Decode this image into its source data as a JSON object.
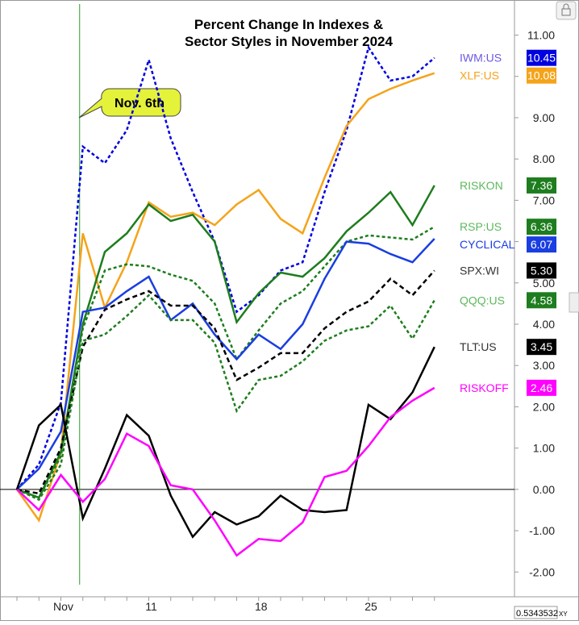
{
  "chart_data": {
    "type": "line",
    "title": [
      "Percent Change In Indexes &",
      "Sector Styles in November 2024"
    ],
    "annotation": "Nov. 6th",
    "corner_readout": "0.5343532",
    "corner_readout_unit": "XY",
    "categories": [
      null,
      null,
      "Nov",
      null,
      null,
      null,
      "11",
      null,
      null,
      null,
      null,
      "18",
      null,
      null,
      null,
      null,
      "25",
      null,
      null,
      null
    ],
    "ylim": [
      -2.6,
      11.85
    ],
    "yticks": [
      {
        "value": -2,
        "label": "-2.00"
      },
      {
        "value": -1,
        "label": "-1.00"
      },
      {
        "value": 0,
        "label": "0.00"
      },
      {
        "value": 1,
        "label": "1.00"
      },
      {
        "value": 2,
        "label": "2.00"
      },
      {
        "value": 3,
        "label": "3.00"
      },
      {
        "value": 4,
        "label": "4.00"
      },
      {
        "value": 5,
        "label": "5.00"
      },
      {
        "value": 6,
        "label": "6.00"
      },
      {
        "value": 7,
        "label": "7.00"
      },
      {
        "value": 8,
        "label": "8.00"
      },
      {
        "value": 9,
        "label": "9.00"
      },
      {
        "value": 10,
        "label": "10.00"
      },
      {
        "value": 11,
        "label": "11.00"
      }
    ],
    "series": [
      {
        "name": "IWM:US",
        "color": "#0000e0",
        "label_color": "#6a5ae0",
        "dash": "dotted",
        "values": [
          0,
          0.6,
          2.1,
          8.3,
          7.9,
          8.7,
          10.4,
          8.5,
          7.2,
          6.0,
          4.3,
          4.7,
          5.3,
          5.5,
          7.2,
          8.7,
          10.7,
          9.9,
          10.0,
          10.45
        ],
        "value_labels": [
          null,
          null,
          null,
          null,
          null,
          null,
          null,
          null,
          null,
          null,
          null,
          null,
          null,
          null,
          null,
          null,
          null,
          null,
          null,
          "10.45"
        ]
      },
      {
        "name": "XLF:US",
        "color": "#f5a31a",
        "label_color": "#f5a31a",
        "dash": "solid",
        "values": [
          0,
          -0.75,
          0.9,
          6.2,
          4.4,
          5.5,
          6.95,
          6.6,
          6.7,
          6.4,
          6.9,
          7.25,
          6.55,
          6.2,
          7.55,
          8.8,
          9.45,
          9.7,
          9.9,
          10.08
        ],
        "value_labels": [
          null,
          null,
          null,
          null,
          null,
          null,
          null,
          null,
          null,
          null,
          null,
          null,
          null,
          null,
          null,
          null,
          null,
          null,
          null,
          "10.08"
        ]
      },
      {
        "name": "RISKON",
        "color": "#1e7d1e",
        "label_color": "#5cb85c",
        "dash": "solid",
        "values": [
          0,
          -0.2,
          0.9,
          4.0,
          5.75,
          6.2,
          6.9,
          6.5,
          6.65,
          6.0,
          4.05,
          4.75,
          5.25,
          5.15,
          5.6,
          6.25,
          6.7,
          7.2,
          6.4,
          7.36
        ],
        "value_labels": [
          null,
          null,
          null,
          null,
          null,
          null,
          null,
          null,
          null,
          null,
          null,
          null,
          null,
          null,
          null,
          null,
          null,
          null,
          null,
          "7.36"
        ]
      },
      {
        "name": "RSP:US",
        "color": "#1e7d1e",
        "label_color": "#5cb85c",
        "dash": "dotted",
        "values": [
          0,
          -0.2,
          0.8,
          3.9,
          5.3,
          5.45,
          5.4,
          5.2,
          5.05,
          4.5,
          3.15,
          3.85,
          4.5,
          4.8,
          5.4,
          6.0,
          6.15,
          6.1,
          6.05,
          6.36
        ],
        "value_labels": [
          null,
          null,
          null,
          null,
          null,
          null,
          null,
          null,
          null,
          null,
          null,
          null,
          null,
          null,
          null,
          null,
          null,
          null,
          null,
          "6.36"
        ]
      },
      {
        "name": "CYCLICAL",
        "color": "#1a3ee0",
        "label_color": "#1a3ee0",
        "dash": "solid",
        "values": [
          0,
          0.5,
          1.4,
          4.3,
          4.4,
          4.8,
          5.15,
          4.1,
          4.5,
          3.75,
          3.15,
          3.75,
          3.4,
          4.0,
          5.1,
          6.0,
          5.95,
          5.7,
          5.5,
          6.07
        ],
        "value_labels": [
          null,
          null,
          null,
          null,
          null,
          null,
          null,
          null,
          null,
          null,
          null,
          null,
          null,
          null,
          null,
          null,
          null,
          null,
          null,
          "6.07"
        ]
      },
      {
        "name": "SPX:WI",
        "color": "#000000",
        "label_color": "#333333",
        "dash": "dashed",
        "values": [
          0,
          -0.1,
          1.0,
          3.45,
          4.35,
          4.6,
          4.8,
          4.45,
          4.45,
          3.9,
          2.65,
          2.95,
          3.3,
          3.3,
          3.9,
          4.3,
          4.55,
          5.1,
          4.7,
          5.3
        ],
        "value_labels": [
          null,
          null,
          null,
          null,
          null,
          null,
          null,
          null,
          null,
          null,
          null,
          null,
          null,
          null,
          null,
          null,
          null,
          null,
          null,
          "5.30"
        ]
      },
      {
        "name": "QQQ:US",
        "color": "#1e7d1e",
        "label_color": "#5cb85c",
        "dash": "dotted",
        "values": [
          0,
          -0.25,
          0.6,
          3.6,
          3.75,
          4.2,
          4.7,
          4.1,
          4.1,
          3.55,
          1.9,
          2.65,
          2.75,
          3.1,
          3.6,
          3.85,
          3.95,
          4.45,
          3.65,
          4.58
        ],
        "value_labels": [
          null,
          null,
          null,
          null,
          null,
          null,
          null,
          null,
          null,
          null,
          null,
          null,
          null,
          null,
          null,
          null,
          null,
          null,
          null,
          "4.58"
        ]
      },
      {
        "name": "TLT:US",
        "color": "#000000",
        "label_color": "#333333",
        "dash": "solid",
        "values": [
          0,
          1.55,
          2.05,
          -0.7,
          0.5,
          1.8,
          1.3,
          -0.15,
          -1.15,
          -0.55,
          -0.85,
          -0.65,
          -0.15,
          -0.5,
          -0.55,
          -0.5,
          2.05,
          1.7,
          2.35,
          3.45
        ],
        "value_labels": [
          null,
          null,
          null,
          null,
          null,
          null,
          null,
          null,
          null,
          null,
          null,
          null,
          null,
          null,
          null,
          null,
          null,
          null,
          null,
          "3.45"
        ]
      },
      {
        "name": "RISKOFF",
        "color": "#ff00ff",
        "label_color": "#ff00ff",
        "dash": "solid",
        "values": [
          0,
          -0.5,
          0.35,
          -0.3,
          0.25,
          1.35,
          1.05,
          0.1,
          0.0,
          -0.75,
          -1.6,
          -1.2,
          -1.25,
          -0.8,
          0.3,
          0.45,
          1.05,
          1.75,
          2.15,
          2.46
        ],
        "value_labels": [
          null,
          null,
          null,
          null,
          null,
          null,
          null,
          null,
          null,
          null,
          null,
          null,
          null,
          null,
          null,
          null,
          null,
          null,
          null,
          "2.46"
        ]
      }
    ]
  }
}
